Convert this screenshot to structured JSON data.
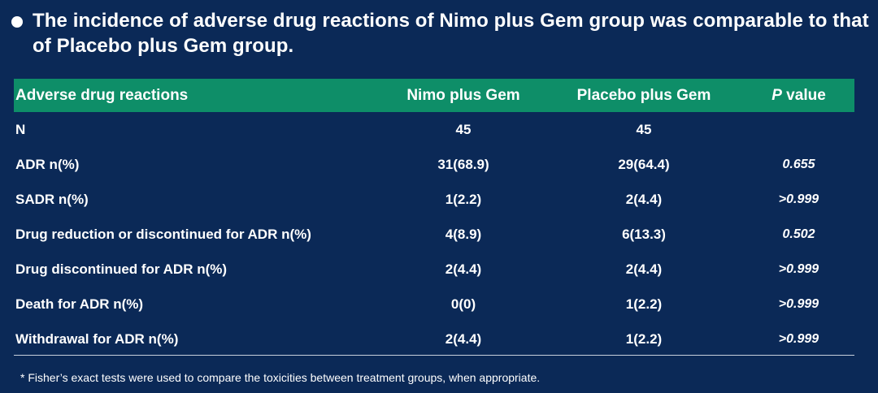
{
  "title": "The incidence of adverse drug reactions of  Nimo plus Gem group was comparable to that of Placebo plus Gem group.",
  "table": {
    "headers": {
      "reaction": "Adverse drug reactions",
      "nimo": "Nimo plus Gem",
      "placebo": "Placebo plus Gem",
      "p_italic": "P",
      "p_rest": " value"
    },
    "rows": [
      {
        "label": "N",
        "nimo": "45",
        "placebo": "45",
        "p": ""
      },
      {
        "label": "ADR n(%)",
        "nimo": "31(68.9)",
        "placebo": "29(64.4)",
        "p": "0.655"
      },
      {
        "label": "SADR n(%)",
        "nimo": "1(2.2)",
        "placebo": "2(4.4)",
        "p": ">0.999"
      },
      {
        "label": "Drug reduction or discontinued  for ADR n(%)",
        "nimo": "4(8.9)",
        "placebo": "6(13.3)",
        "p": "0.502"
      },
      {
        "label": "Drug discontinued  for ADR n(%)",
        "nimo": "2(4.4)",
        "placebo": "2(4.4)",
        "p": ">0.999"
      },
      {
        "label": "Death for ADR n(%)",
        "nimo": "0(0)",
        "placebo": "1(2.2)",
        "p": ">0.999"
      },
      {
        "label": "Withdrawal for ADR n(%)",
        "nimo": "2(4.4)",
        "placebo": "1(2.2)",
        "p": ">0.999"
      }
    ]
  },
  "footnote": "* Fisher’s exact tests were used to compare the toxicities between treatment groups, when appropriate.",
  "colors": {
    "background": "#0b2957",
    "header": "#0e8e68",
    "text": "#ffffff"
  }
}
